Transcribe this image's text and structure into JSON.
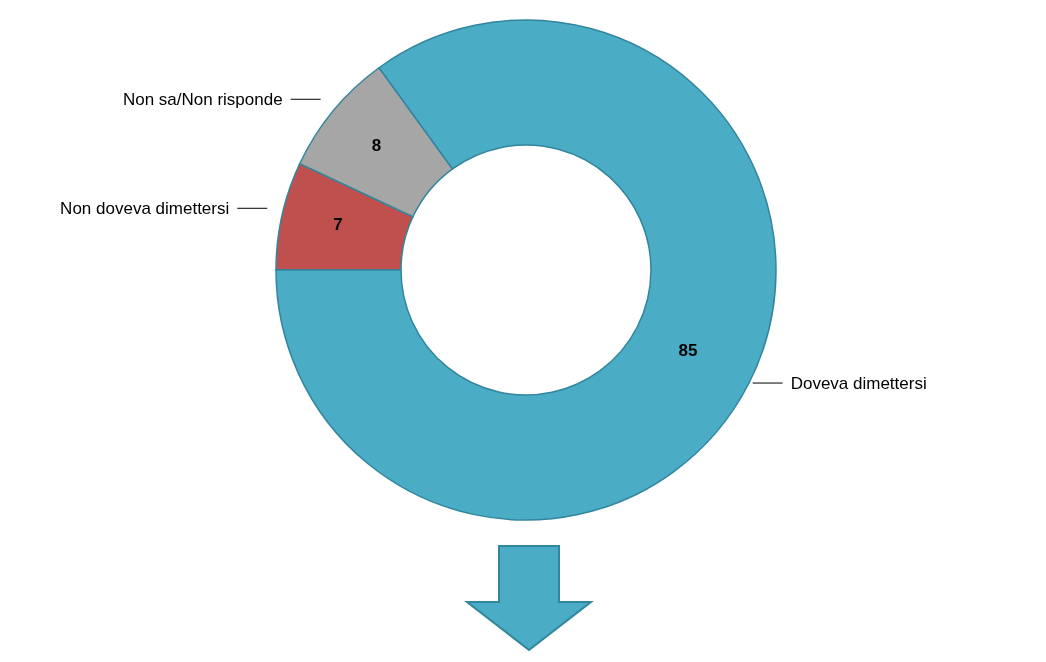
{
  "chart_data": {
    "type": "donut",
    "categories": [
      "Non doveva dimettersi",
      "Non sa/Non risponde",
      "Doveva dimettersi"
    ],
    "values": [
      7,
      8,
      85
    ],
    "colors": [
      "#c0504d",
      "#a6a6a6",
      "#4bacc6"
    ],
    "data_labels": true
  }
}
